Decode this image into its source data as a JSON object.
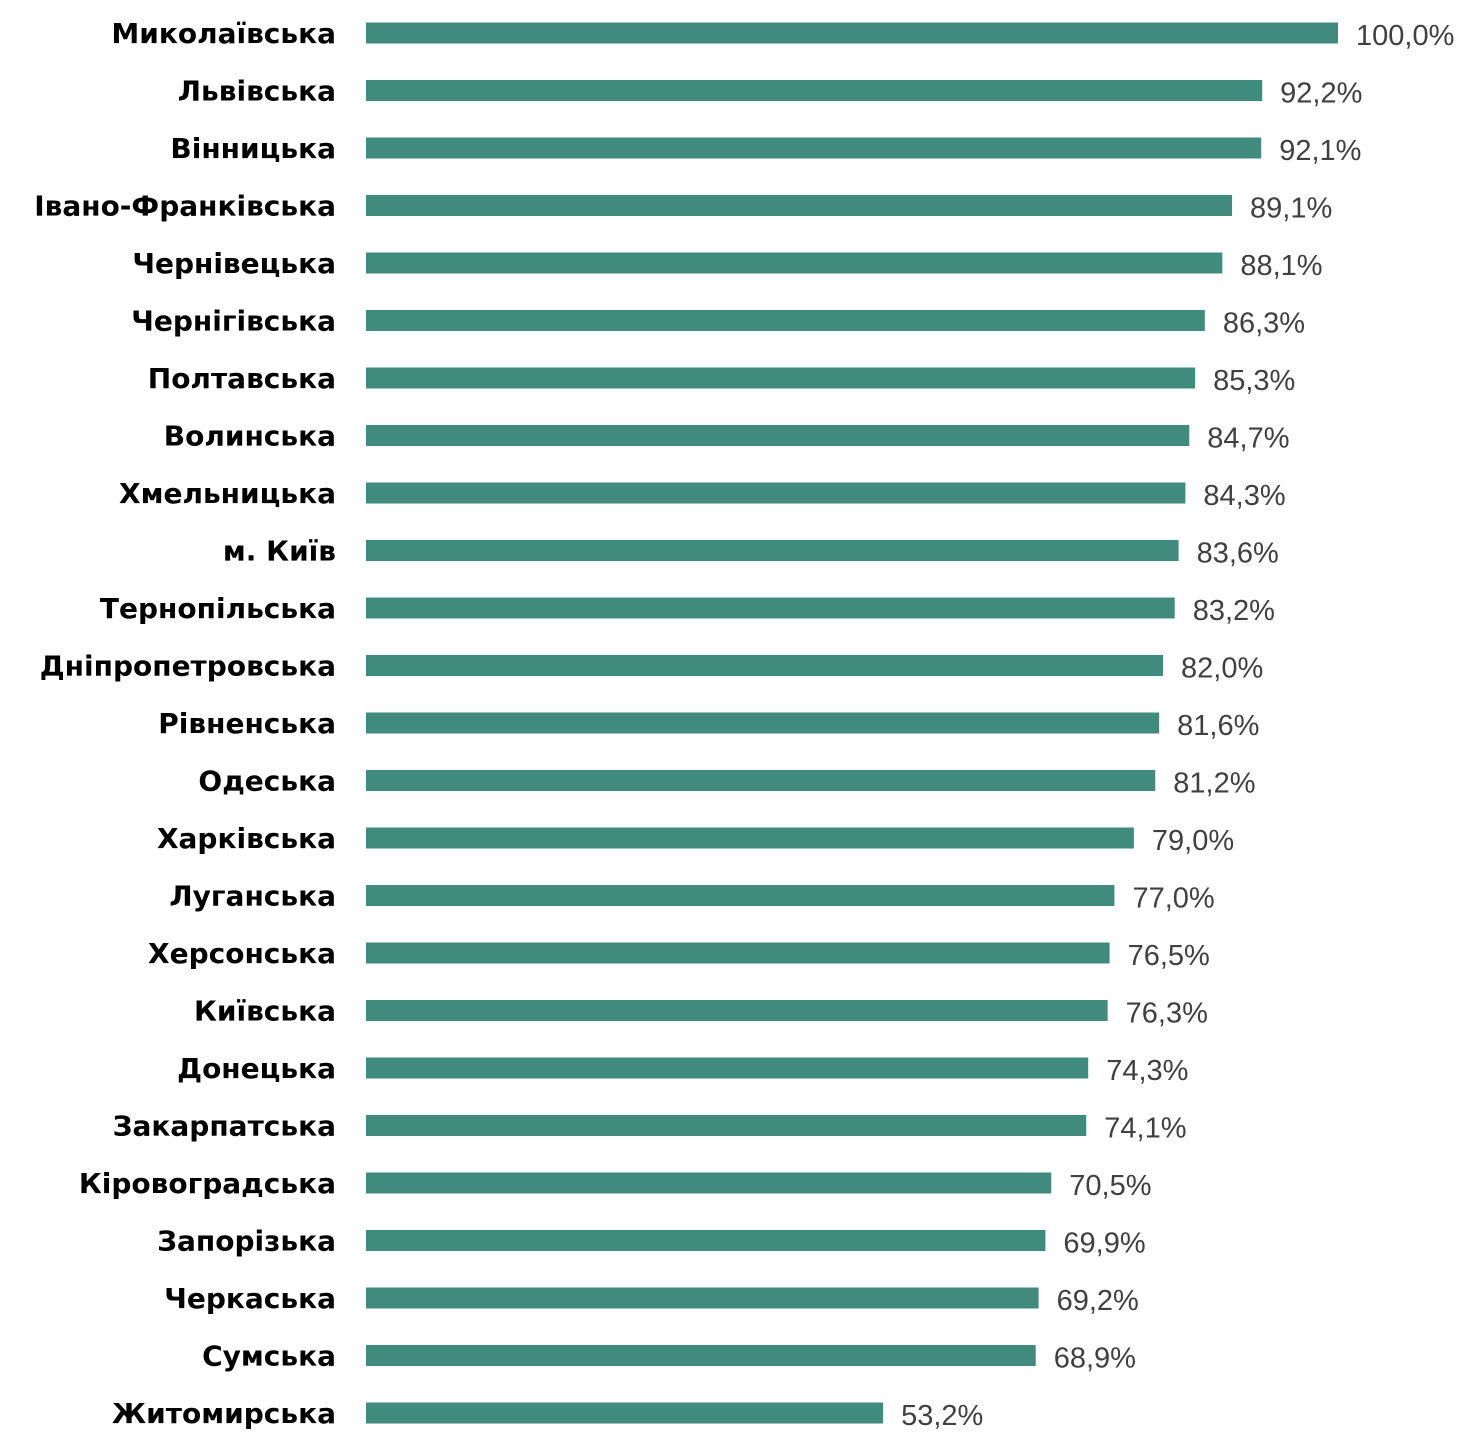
{
  "chart_data": {
    "type": "bar",
    "orientation": "horizontal",
    "categories": [
      "Миколаївська",
      "Львівська",
      "Вінницька",
      "Івано-Франківська",
      "Чернівецька",
      "Чернігівська",
      "Полтавська",
      "Волинська",
      "Хмельницька",
      "м. Київ",
      "Тернопільська",
      "Дніпропетровська",
      "Рівненська",
      "Одеська",
      "Харківська",
      "Луганська",
      "Херсонська",
      "Київська",
      "Донецька",
      "Закарпатська",
      "Кіровоградська",
      "Запорізька",
      "Черкаська",
      "Сумська",
      "Житомирська"
    ],
    "values": [
      100.0,
      92.2,
      92.1,
      89.1,
      88.1,
      86.3,
      85.3,
      84.7,
      84.3,
      83.6,
      83.2,
      82.0,
      81.6,
      81.2,
      79.0,
      77.0,
      76.5,
      76.3,
      74.3,
      74.1,
      70.5,
      69.9,
      69.2,
      68.9,
      53.2
    ],
    "value_labels": [
      "100,0%",
      "92,2%",
      "92,1%",
      "89,1%",
      "88,1%",
      "86,3%",
      "85,3%",
      "84,7%",
      "84,3%",
      "83,6%",
      "83,2%",
      "82,0%",
      "81,6%",
      "81,2%",
      "79,0%",
      "77,0%",
      "76,5%",
      "76,3%",
      "74,3%",
      "74,1%",
      "70,5%",
      "69,9%",
      "69,2%",
      "68,9%",
      "53,2%"
    ],
    "unit": "%",
    "xlim": [
      0,
      100
    ],
    "grid": false,
    "legend": "none",
    "bar_color": "#418b7e",
    "title": "",
    "xlabel": "",
    "ylabel": ""
  }
}
